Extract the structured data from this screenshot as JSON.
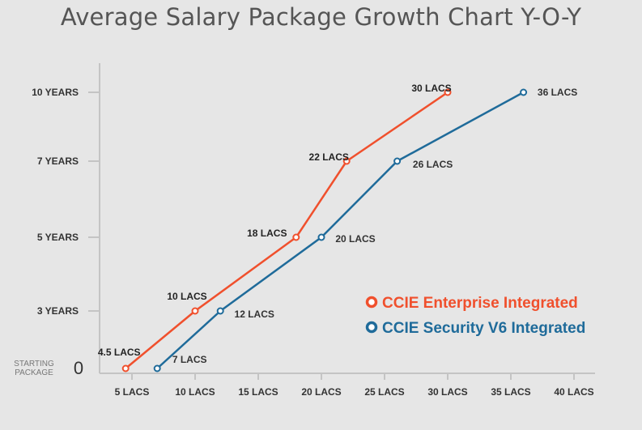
{
  "chart_data": {
    "type": "line",
    "title": "Average Salary Package Growth Chart Y-O-Y",
    "y_categories": [
      "STARTING PACKAGE",
      "3 YEARS",
      "5 YEARS",
      "7 YEARS",
      "10 YEARS"
    ],
    "y_values": [
      0,
      3,
      5,
      7,
      10
    ],
    "y_zero_label": "0",
    "y_start_label_lines": [
      "STARTING",
      "PACKAGE"
    ],
    "x_ticks": [
      {
        "value": 5,
        "label": "5 LACS"
      },
      {
        "value": 10,
        "label": "10 LACS"
      },
      {
        "value": 15,
        "label": "15 LACS"
      },
      {
        "value": 20,
        "label": "20 LACS"
      },
      {
        "value": 25,
        "label": "25 LACS"
      },
      {
        "value": 30,
        "label": "30 LACS"
      },
      {
        "value": 35,
        "label": "35 LACS"
      },
      {
        "value": 40,
        "label": "40 LACS"
      }
    ],
    "xlabel": "",
    "ylabel": "",
    "series": [
      {
        "name": "CCIE Enterprise Integrated",
        "color": "#f0502d",
        "points": [
          {
            "years": 0,
            "salary": 4.5,
            "label": "4.5 LACS"
          },
          {
            "years": 3,
            "salary": 10,
            "label": "10 LACS"
          },
          {
            "years": 5,
            "salary": 18,
            "label": "18 LACS"
          },
          {
            "years": 7,
            "salary": 22,
            "label": "22 LACS"
          },
          {
            "years": 10,
            "salary": 30,
            "label": "30 LACS"
          }
        ]
      },
      {
        "name": "CCIE Security V6 Integrated",
        "color": "#1f6b9a",
        "points": [
          {
            "years": 0,
            "salary": 7,
            "label": "7 LACS"
          },
          {
            "years": 3,
            "salary": 12,
            "label": "12 LACS"
          },
          {
            "years": 5,
            "salary": 20,
            "label": "20 LACS"
          },
          {
            "years": 7,
            "salary": 26,
            "label": "26 LACS"
          },
          {
            "years": 10,
            "salary": 36,
            "label": "36 LACS"
          }
        ]
      }
    ],
    "legend_position": "right"
  }
}
